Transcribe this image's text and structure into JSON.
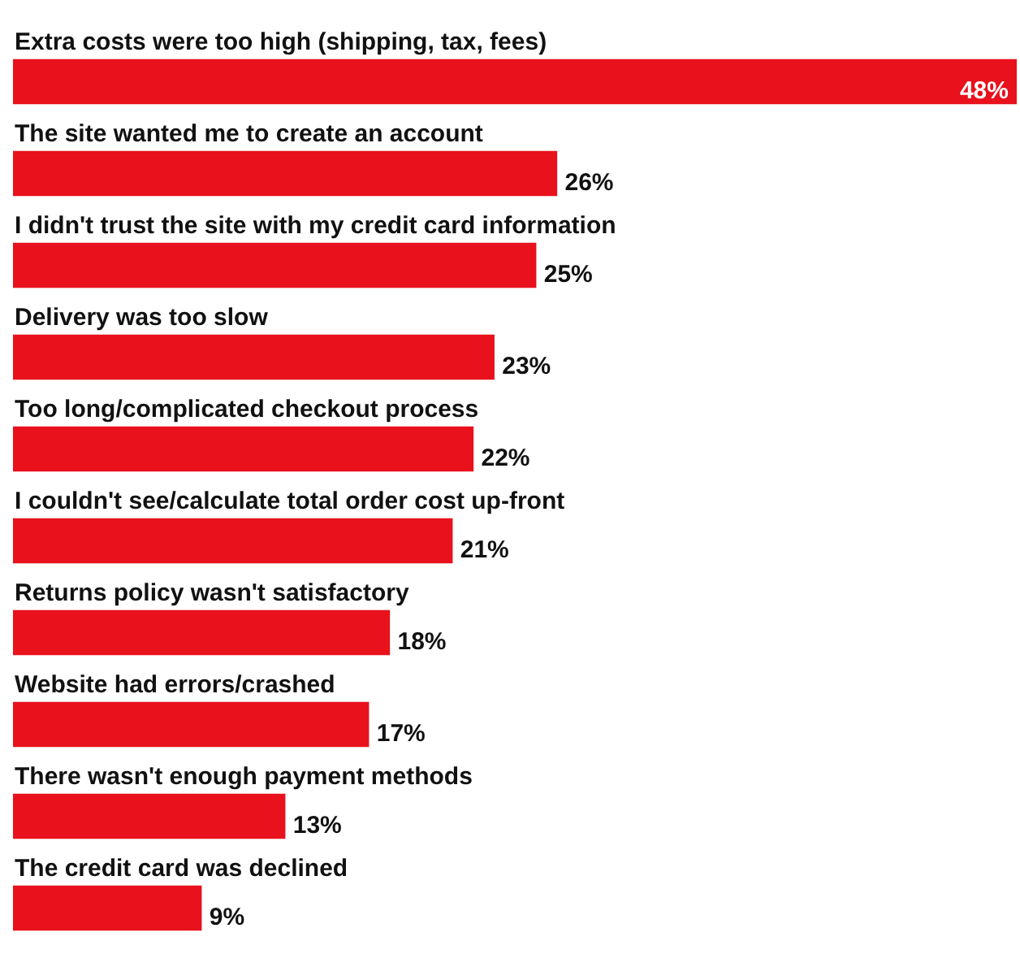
{
  "chart_data": {
    "type": "bar",
    "orientation": "horizontal",
    "categories": [
      "Extra costs were too high (shipping, tax, fees)",
      "The site wanted me to create an account",
      "I didn't trust the site with my credit card information",
      "Delivery was too slow",
      "Too long/complicated checkout process",
      "I couldn't see/calculate total order cost up-front",
      "Returns policy wasn't satisfactory",
      "Website had errors/crashed",
      "There wasn't enough payment methods",
      "The credit card was declined"
    ],
    "values": [
      48,
      26,
      25,
      23,
      22,
      21,
      18,
      17,
      13,
      9
    ],
    "value_labels": [
      "48%",
      "26%",
      "25%",
      "23%",
      "22%",
      "21%",
      "18%",
      "17%",
      "13%",
      "9%"
    ],
    "color": "#e8111c"
  }
}
